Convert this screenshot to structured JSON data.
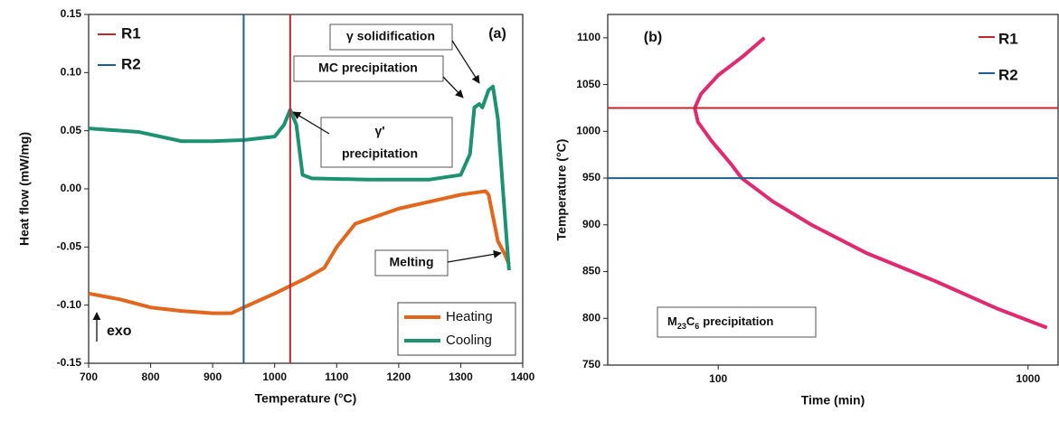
{
  "chart_data": [
    {
      "type": "line",
      "xlabel": "Temperature (°C)",
      "ylabel": "Heat flow (mW/mg)",
      "xlim": [
        700,
        1400
      ],
      "xticks": [
        700,
        800,
        900,
        1000,
        1100,
        1200,
        1300,
        1400
      ],
      "ylim": [
        -0.15,
        0.15
      ],
      "yticks": [
        -0.15,
        {
          "value": -0.1,
          "label": "-0.10"
        },
        -0.05,
        {
          "value": 0,
          "label": "0.00"
        },
        0.05,
        {
          "value": 0.1,
          "label": "0.10"
        },
        0.15
      ],
      "legend": "lower right",
      "series": [
        {
          "name": "Heating",
          "color": "#e2661b",
          "x": [
            700,
            750,
            800,
            850,
            900,
            930,
            950,
            1000,
            1050,
            1080,
            1100,
            1130,
            1200,
            1250,
            1300,
            1340,
            1345,
            1360,
            1370,
            1378
          ],
          "values": [
            -0.09,
            -0.095,
            -0.102,
            -0.105,
            -0.107,
            -0.107,
            -0.102,
            -0.09,
            -0.077,
            -0.068,
            -0.05,
            -0.03,
            -0.017,
            -0.011,
            -0.005,
            -0.002,
            -0.005,
            -0.045,
            -0.055,
            -0.065
          ]
        },
        {
          "name": "Cooling",
          "color": "#1d9272",
          "x": [
            700,
            780,
            850,
            900,
            950,
            1000,
            1015,
            1025,
            1035,
            1045,
            1060,
            1150,
            1250,
            1300,
            1315,
            1322,
            1330,
            1335,
            1345,
            1352,
            1360,
            1368,
            1375,
            1378
          ],
          "values": [
            0.052,
            0.049,
            0.041,
            0.041,
            0.042,
            0.045,
            0.055,
            0.068,
            0.055,
            0.012,
            0.009,
            0.008,
            0.008,
            0.012,
            0.03,
            0.07,
            0.073,
            0.07,
            0.085,
            0.088,
            0.06,
            0,
            -0.05,
            -0.07
          ]
        }
      ],
      "ref_lines": [
        {
          "name": "R1",
          "value": 1025,
          "color": "#c8252c",
          "orientation": "vertical"
        },
        {
          "name": "R2",
          "value": 950,
          "color": "#1f5f8b",
          "orientation": "vertical"
        }
      ],
      "annotations": [
        "(a)",
        "γ solidification",
        "MC precipitation",
        "γ'",
        "precipitation",
        "Melting",
        "exo"
      ]
    },
    {
      "type": "line",
      "xscale": "log",
      "xlabel": "Time (min)",
      "ylabel": "Temperature (°C)",
      "xlim": [
        44,
        1250
      ],
      "xticks": [
        100,
        1000
      ],
      "ylim": [
        750,
        1125
      ],
      "yticks": [
        750,
        800,
        850,
        900,
        950,
        1000,
        1050,
        1100
      ],
      "series": [
        {
          "color": "#e0296f",
          "x": [
            141,
            120,
            100,
            88,
            84,
            86,
            95,
            110,
            119,
            150,
            200,
            300,
            500,
            800,
            1151
          ],
          "values": [
            1100,
            1080,
            1060,
            1040,
            1025,
            1010,
            990,
            965,
            950,
            925,
            900,
            870,
            840,
            810,
            790
          ]
        }
      ],
      "ref_lines": [
        {
          "name": "R1",
          "value": 1025,
          "color": "#c8252c",
          "orientation": "horizontal"
        },
        {
          "name": "R2",
          "value": 950,
          "color": "#1f5f8b",
          "orientation": "horizontal"
        }
      ],
      "annotations": [
        "(b)"
      ],
      "box_label": [
        "M",
        "23",
        "C",
        "6",
        "precipitation"
      ]
    }
  ]
}
